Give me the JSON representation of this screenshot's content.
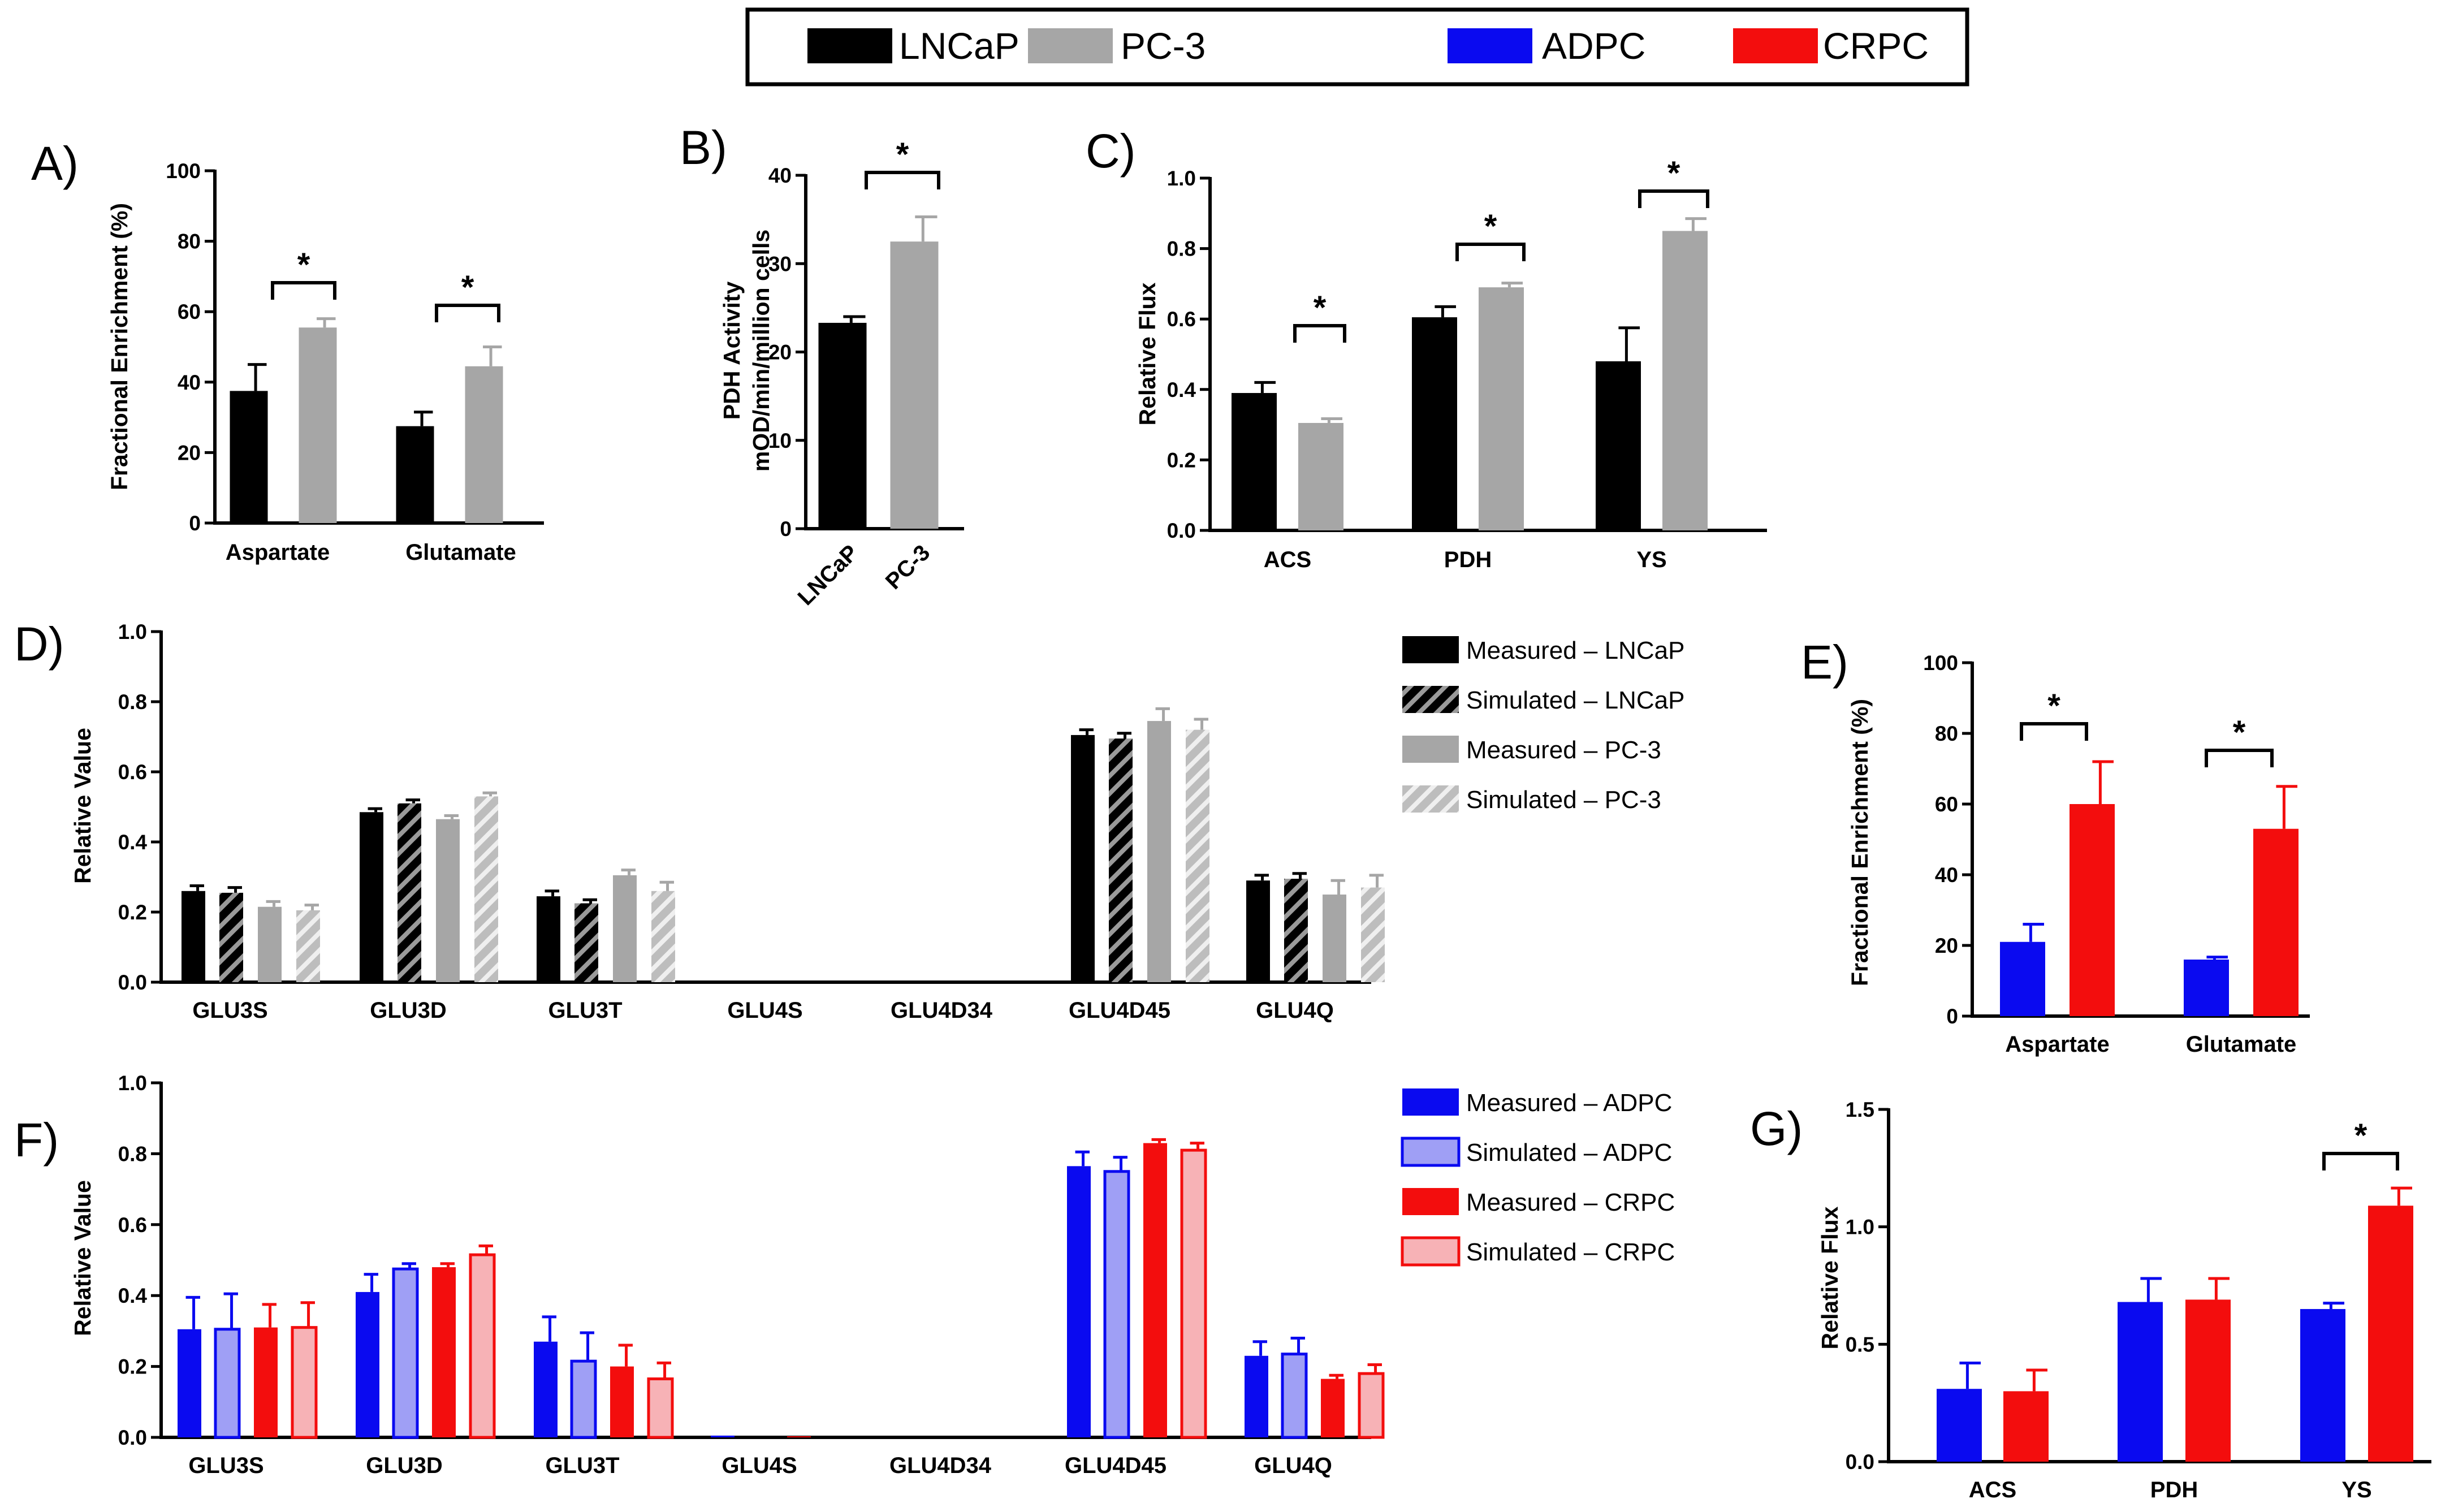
{
  "colors": {
    "LNCaP": "#000000",
    "PC-3": "#a6a6a6",
    "ADPC": "#0a0af0",
    "CRPC": "#f30d0d",
    "ADPC_light": "#9f9ff5",
    "CRPC_light": "#f7b2b6"
  },
  "top_legend": [
    "LNCaP",
    "PC-3",
    "ADPC",
    "CRPC"
  ],
  "chart_data": [
    {
      "panel": "A)",
      "type": "bar",
      "ylabel": "Fractional Enrichment (%)",
      "categories": [
        "Aspartate",
        "Glutamate"
      ],
      "ylim": [
        0,
        100
      ],
      "yticks": [
        "0",
        "20",
        "40",
        "60",
        "80",
        "100"
      ],
      "series": [
        {
          "name": "LNCaP",
          "values": [
            37.5,
            27.5
          ],
          "errors": [
            7.5,
            4.0
          ]
        },
        {
          "name": "PC-3",
          "values": [
            55.5,
            44.5
          ],
          "errors": [
            2.5,
            5.5
          ]
        }
      ],
      "significance": [
        {
          "category": "Aspartate",
          "label": "*"
        },
        {
          "category": "Glutamate",
          "label": "*"
        }
      ]
    },
    {
      "panel": "B)",
      "type": "bar",
      "ylabel": [
        "PDH Activity",
        "mOD/min/million cells"
      ],
      "categories": [
        "LNCaP",
        "PC-3"
      ],
      "ylim": [
        0,
        40
      ],
      "yticks": [
        "0",
        "10",
        "20",
        "30",
        "40"
      ],
      "series": [
        {
          "name": "Activity",
          "colors": [
            "LNCaP",
            "PC-3"
          ],
          "values": [
            23.3,
            32.5
          ],
          "errors": [
            0.7,
            2.8
          ]
        }
      ],
      "significance": [
        {
          "category": "all",
          "label": "*"
        }
      ]
    },
    {
      "panel": "C)",
      "type": "bar",
      "ylabel": "Relative Flux",
      "categories": [
        "ACS",
        "PDH",
        "YS"
      ],
      "ylim": [
        0,
        1.0
      ],
      "yticks": [
        "0.0",
        "0.2",
        "0.4",
        "0.6",
        "0.8",
        "1.0"
      ],
      "series": [
        {
          "name": "LNCaP",
          "values": [
            0.39,
            0.605,
            0.48
          ],
          "errors": [
            0.03,
            0.03,
            0.095
          ]
        },
        {
          "name": "PC-3",
          "values": [
            0.305,
            0.69,
            0.85
          ],
          "errors": [
            0.012,
            0.012,
            0.035
          ]
        }
      ],
      "significance": [
        {
          "category": "ACS",
          "label": "*"
        },
        {
          "category": "PDH",
          "label": "*"
        },
        {
          "category": "YS",
          "label": "*"
        }
      ]
    },
    {
      "panel": "D)",
      "type": "bar",
      "ylabel": "Relative Value",
      "categories": [
        "GLU3S",
        "GLU3D",
        "GLU3T",
        "GLU4S",
        "GLU4D34",
        "GLU4D45",
        "GLU4Q"
      ],
      "ylim": [
        0,
        1.0
      ],
      "yticks": [
        "0.0",
        "0.2",
        "0.4",
        "0.6",
        "0.8",
        "1.0"
      ],
      "series": [
        {
          "name": "Measured – LNCaP",
          "style": "solid-black",
          "values": [
            0.26,
            0.485,
            0.245,
            0,
            0,
            0.705,
            0.29
          ],
          "errors": [
            0.015,
            0.01,
            0.015,
            0,
            0,
            0.015,
            0.015
          ]
        },
        {
          "name": "Simulated – LNCaP",
          "style": "hatch-black",
          "values": [
            0.255,
            0.51,
            0.225,
            0,
            0,
            0.695,
            0.295
          ],
          "errors": [
            0.015,
            0.01,
            0.01,
            0,
            0,
            0.015,
            0.015
          ]
        },
        {
          "name": "Measured – PC-3",
          "style": "solid-gray",
          "values": [
            0.215,
            0.465,
            0.305,
            0,
            0,
            0.745,
            0.25
          ],
          "errors": [
            0.015,
            0.01,
            0.015,
            0,
            0,
            0.035,
            0.04
          ]
        },
        {
          "name": "Simulated – PC-3",
          "style": "hatch-gray",
          "values": [
            0.205,
            0.53,
            0.26,
            0,
            0,
            0.72,
            0.27
          ],
          "errors": [
            0.015,
            0.01,
            0.025,
            0,
            0,
            0.03,
            0.035
          ]
        }
      ]
    },
    {
      "panel": "E)",
      "type": "bar",
      "ylabel": "Fractional Enrichment (%)",
      "categories": [
        "Aspartate",
        "Glutamate"
      ],
      "ylim": [
        0,
        100
      ],
      "yticks": [
        "0",
        "20",
        "40",
        "60",
        "80",
        "100"
      ],
      "series": [
        {
          "name": "ADPC",
          "values": [
            21,
            16
          ],
          "errors": [
            5,
            0.7
          ]
        },
        {
          "name": "CRPC",
          "values": [
            60,
            53
          ],
          "errors": [
            12,
            12
          ]
        }
      ],
      "significance": [
        {
          "category": "Aspartate",
          "label": "*"
        },
        {
          "category": "Glutamate",
          "label": "*"
        }
      ]
    },
    {
      "panel": "F)",
      "type": "bar",
      "ylabel": "Relative Value",
      "categories": [
        "GLU3S",
        "GLU3D",
        "GLU3T",
        "GLU4S",
        "GLU4D34",
        "GLU4D45",
        "GLU4Q"
      ],
      "ylim": [
        0,
        1.0
      ],
      "yticks": [
        "0.0",
        "0.2",
        "0.4",
        "0.6",
        "0.8",
        "1.0"
      ],
      "series": [
        {
          "name": "Measured – ADPC",
          "style": "solid-blue",
          "values": [
            0.305,
            0.41,
            0.27,
            0.005,
            0,
            0.765,
            0.23
          ],
          "errors": [
            0.09,
            0.05,
            0.07,
            0,
            0,
            0.04,
            0.04
          ]
        },
        {
          "name": "Simulated – ADPC",
          "style": "light-blue",
          "values": [
            0.305,
            0.475,
            0.215,
            0,
            0,
            0.75,
            0.235
          ],
          "errors": [
            0.1,
            0.015,
            0.08,
            0,
            0,
            0.04,
            0.045
          ]
        },
        {
          "name": "Measured – CRPC",
          "style": "solid-red",
          "values": [
            0.31,
            0.48,
            0.2,
            0.003,
            0,
            0.83,
            0.165
          ],
          "errors": [
            0.065,
            0.01,
            0.06,
            0,
            0,
            0.01,
            0.01
          ]
        },
        {
          "name": "Simulated – CRPC",
          "style": "light-red",
          "values": [
            0.31,
            0.515,
            0.165,
            0,
            0,
            0.81,
            0.18
          ],
          "errors": [
            0.07,
            0.025,
            0.045,
            0,
            0,
            0.02,
            0.025
          ]
        }
      ]
    },
    {
      "panel": "G)",
      "type": "bar",
      "ylabel": "Relative Flux",
      "categories": [
        "ACS",
        "PDH",
        "YS"
      ],
      "ylim": [
        0,
        1.5
      ],
      "yticks": [
        "0.0",
        "0.5",
        "1.0",
        "1.5"
      ],
      "series": [
        {
          "name": "ADPC",
          "values": [
            0.31,
            0.68,
            0.65
          ],
          "errors": [
            0.11,
            0.1,
            0.025
          ]
        },
        {
          "name": "CRPC",
          "values": [
            0.3,
            0.69,
            1.09
          ],
          "errors": [
            0.09,
            0.09,
            0.075
          ]
        }
      ],
      "significance": [
        {
          "category": "YS",
          "label": "*"
        }
      ]
    }
  ]
}
